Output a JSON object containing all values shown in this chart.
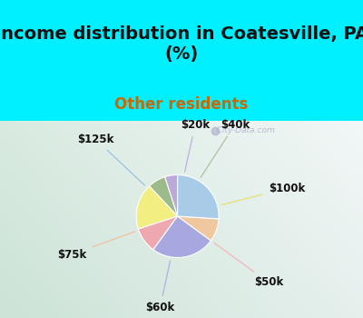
{
  "title": "Income distribution in Coatesville, PA\n(%)",
  "subtitle": "Other residents",
  "title_color": "#111111",
  "subtitle_color": "#cc6600",
  "background_cyan": "#00f0ff",
  "watermark": "  City-Data.com",
  "labels": [
    "$20k",
    "$40k",
    "$100k",
    "$50k",
    "$60k",
    "$75k",
    "$125k"
  ],
  "sizes": [
    5,
    7,
    18,
    10,
    25,
    9,
    26
  ],
  "colors": [
    "#bbaad8",
    "#9dba8a",
    "#f2ee82",
    "#f0a8b0",
    "#a8a8e0",
    "#f0c8a0",
    "#a8cce8"
  ],
  "startangle": 90,
  "title_fontsize": 14,
  "subtitle_fontsize": 12,
  "label_fontsize": 8.5,
  "label_color": "#111111"
}
